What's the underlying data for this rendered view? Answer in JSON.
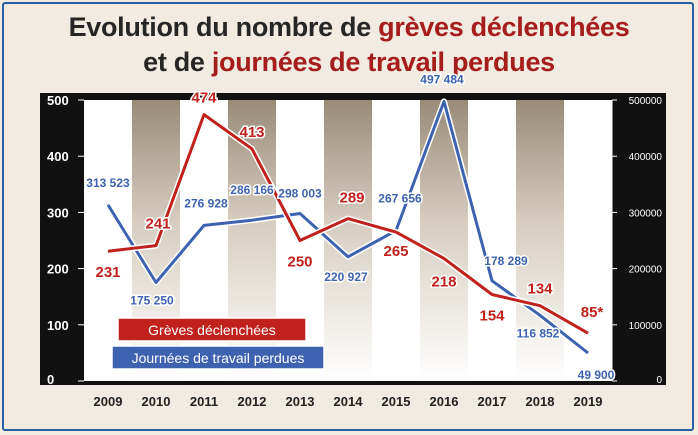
{
  "title": {
    "line1_prefix": "Evolution du nombre de ",
    "line1_highlight": "grèves déclenchées",
    "line2_prefix": "et de ",
    "line2_highlight": "journées de travail perdues"
  },
  "chart_data": {
    "type": "line",
    "categories": [
      "2009",
      "2010",
      "2011",
      "2012",
      "2013",
      "2014",
      "2015",
      "2016",
      "2017",
      "2018",
      "2019"
    ],
    "y_left": {
      "ticks": [
        "0",
        "100",
        "200",
        "300",
        "400",
        "500"
      ],
      "range": [
        0,
        500
      ]
    },
    "y_right": {
      "ticks": [
        "0",
        "100000",
        "200000",
        "300000",
        "400000",
        "500000"
      ],
      "range": [
        0,
        500000
      ]
    },
    "series": [
      {
        "name": "Grèves déclenchées",
        "axis": "left",
        "color": "#c0211c",
        "values": [
          231,
          241,
          474,
          413,
          250,
          289,
          265,
          218,
          154,
          134,
          85
        ],
        "labels": [
          "231",
          "241",
          "474",
          "413",
          "250",
          "289",
          "265",
          "218",
          "154",
          "134",
          "85*"
        ]
      },
      {
        "name": "Journées de travail perdues",
        "axis": "right",
        "color": "#3d63b0",
        "values": [
          313523,
          175250,
          276928,
          286166,
          298003,
          220927,
          267656,
          497484,
          178289,
          116852,
          49900
        ],
        "labels": [
          "313 523",
          "175 250",
          "276 928",
          "286 166",
          "298 003",
          "220 927",
          "267 656",
          "497 484",
          "178 289",
          "116 852",
          "49 900"
        ]
      }
    ],
    "legend": [
      "Grèves déclenchées",
      "Journées de travail perdues"
    ],
    "legend_placement": "bottom-left"
  }
}
